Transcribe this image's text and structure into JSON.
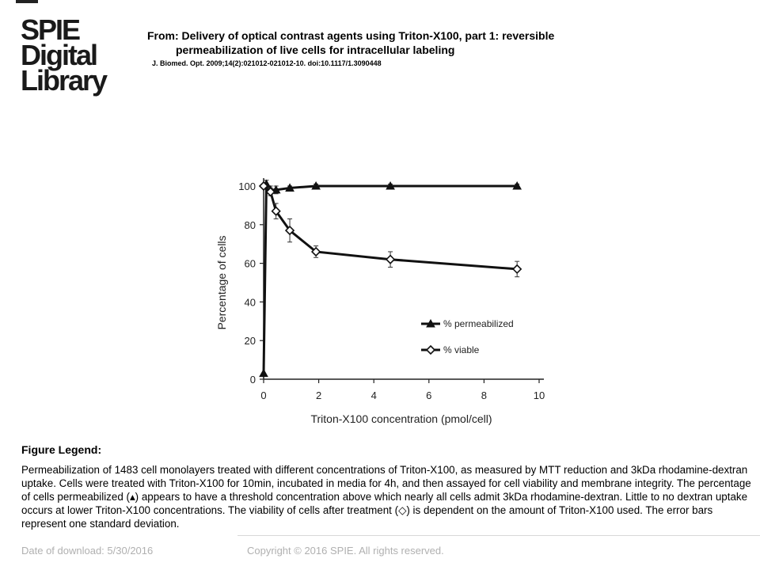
{
  "logo": {
    "line1": "SPIE",
    "line2": "Digital",
    "line3": "Library"
  },
  "header": {
    "from_line1": "From: Delivery of optical contrast agents using Triton-X100, part 1: reversible",
    "from_line2": "permeabilization of live cells for intracellular labeling",
    "citation": "J. Biomed. Opt. 2009;14(2):021012-021012-10. doi:10.1117/1.3090448"
  },
  "chart_data": {
    "type": "line",
    "xlabel": "Triton-X100 concentration (pmol/cell)",
    "ylabel": "Percentage of cells",
    "xlim": [
      0,
      10
    ],
    "ylim": [
      0,
      100
    ],
    "xticks": [
      0,
      2,
      4,
      6,
      8,
      10
    ],
    "yticks": [
      0,
      20,
      40,
      60,
      80,
      100
    ],
    "legend_position": "center-right",
    "series": [
      {
        "name": "% permeabilized",
        "marker": "filled-triangle",
        "x": [
          0,
          0.1,
          0.25,
          0.45,
          0.95,
          1.9,
          4.6,
          9.2
        ],
        "y": [
          3,
          101,
          98,
          98,
          99,
          100,
          100,
          100
        ],
        "err": [
          0,
          2,
          2,
          2,
          1,
          1,
          1,
          1
        ]
      },
      {
        "name": "% viable",
        "marker": "open-diamond",
        "x": [
          0,
          0.25,
          0.45,
          0.95,
          1.9,
          4.6,
          9.2
        ],
        "y": [
          100,
          97,
          87,
          77,
          66,
          62,
          57
        ],
        "err": [
          1,
          2,
          4,
          6,
          3,
          4,
          4
        ]
      }
    ]
  },
  "legend": {
    "title": "Figure Legend:",
    "text": "Permeabilization of 1483 cell monolayers treated with different concentrations of Triton-X100, as measured by MTT reduction and 3kDa rhodamine-dextran uptake. Cells were treated with Triton-X100 for 10min, incubated in media for 4h, and then assayed for cell viability and membrane integrity. The percentage of cells permeabilized (▴) appears to have a threshold concentration above which nearly all cells admit 3kDa rhodamine-dextran. Little to no dextran uptake occurs at lower Triton-X100 concentrations. The viability of cells after treatment (◇) is dependent on the amount of Triton-X100 used. The error bars represent one standard deviation."
  },
  "footer": {
    "date": "Date of download:  5/30/2016",
    "copyright": "Copyright © 2016 SPIE. All rights reserved."
  }
}
